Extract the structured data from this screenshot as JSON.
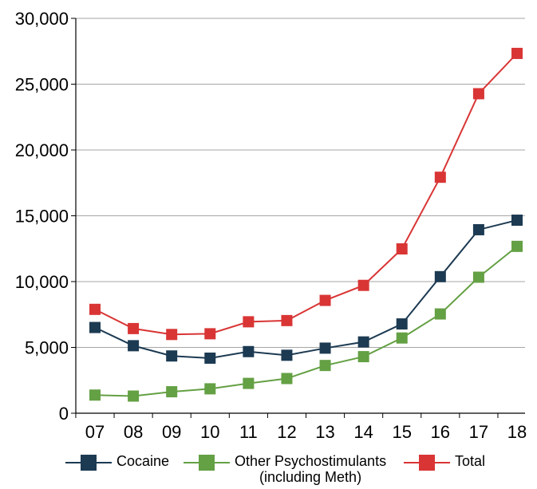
{
  "chart_data": {
    "type": "line",
    "categories": [
      "07",
      "08",
      "09",
      "10",
      "11",
      "12",
      "13",
      "14",
      "15",
      "16",
      "17",
      "18"
    ],
    "ylim": [
      0,
      30000
    ],
    "yticks": [
      0,
      5000,
      10000,
      15000,
      20000,
      25000,
      30000
    ],
    "ytick_labels": [
      "0",
      "5,000",
      "10,000",
      "15,000",
      "20,000",
      "25,000",
      "30,000"
    ],
    "grid": true,
    "legend_position": "bottom",
    "series": [
      {
        "name": "Cocaine",
        "color": "#1c3a52",
        "values": [
          6512,
          5129,
          4350,
          4183,
          4681,
          4404,
          4944,
          5415,
          6784,
          10375,
          13942,
          14666
        ]
      },
      {
        "name": "Other Psychostimulants (including Meth)",
        "name_line1": "Other Psychostimulants",
        "name_line2": "(including Meth)",
        "color": "#64a044",
        "values": [
          1378,
          1302,
          1632,
          1854,
          2266,
          2635,
          3627,
          4298,
          5716,
          7542,
          10333,
          12676
        ]
      },
      {
        "name": "Total",
        "color": "#d93535",
        "values": [
          7890,
          6431,
          5982,
          6037,
          6947,
          7039,
          8571,
          9713,
          12484,
          17928,
          24274,
          27337
        ]
      }
    ]
  }
}
